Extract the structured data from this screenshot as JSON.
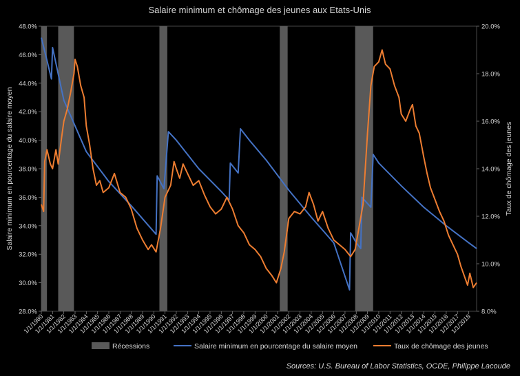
{
  "chart_data": {
    "type": "line",
    "title": "Salaire minimum et chômage des jeunes aux Etats-Unis",
    "ylabel_left": "Salaire minimum en pourcentage du salaire moyen",
    "ylabel_right": "Taux de chômage des jeunes",
    "source": "Sources: U.S. Bureau of Labor Statistics, OCDE, Philippe Lacoude",
    "x_range": [
      1980.0,
      2018.7
    ],
    "y_left_range": [
      28,
      48
    ],
    "y_right_range": [
      8,
      20
    ],
    "y_left_ticks": [
      "28.0%",
      "30.0%",
      "32.0%",
      "34.0%",
      "36.0%",
      "38.0%",
      "40.0%",
      "42.0%",
      "44.0%",
      "46.0%",
      "48.0%"
    ],
    "y_right_ticks": [
      "8.0%",
      "10.0%",
      "12.0%",
      "14.0%",
      "16.0%",
      "18.0%",
      "20.0%"
    ],
    "x_ticks": [
      {
        "label": "1/1/1980",
        "x": 1980
      },
      {
        "label": "1/1/1981",
        "x": 1981
      },
      {
        "label": "1/1/1982",
        "x": 1982
      },
      {
        "label": "1/1/1983",
        "x": 1983
      },
      {
        "label": "1/1/1984",
        "x": 1984
      },
      {
        "label": "1/1/1985",
        "x": 1985
      },
      {
        "label": "1/1/1986",
        "x": 1986
      },
      {
        "label": "1/1/1987",
        "x": 1987
      },
      {
        "label": "1/1/1988",
        "x": 1988
      },
      {
        "label": "1/1/1989",
        "x": 1989
      },
      {
        "label": "1/1/1990",
        "x": 1990
      },
      {
        "label": "1/1/1991",
        "x": 1991
      },
      {
        "label": "1/1/1992",
        "x": 1992
      },
      {
        "label": "1/1/1993",
        "x": 1993
      },
      {
        "label": "1/1/1994",
        "x": 1994
      },
      {
        "label": "1/1/1995",
        "x": 1995
      },
      {
        "label": "1/1/1996",
        "x": 1996
      },
      {
        "label": "1/1/1997",
        "x": 1997
      },
      {
        "label": "1/1/1998",
        "x": 1998
      },
      {
        "label": "1/1/1999",
        "x": 1999
      },
      {
        "label": "1/1/2000",
        "x": 2000
      },
      {
        "label": "1/1/2001",
        "x": 2001
      },
      {
        "label": "1/1/2002",
        "x": 2002
      },
      {
        "label": "1/1/2003",
        "x": 2003
      },
      {
        "label": "1/1/2004",
        "x": 2004
      },
      {
        "label": "1/1/2005",
        "x": 2005
      },
      {
        "label": "1/1/2006",
        "x": 2006
      },
      {
        "label": "1/1/2007",
        "x": 2007
      },
      {
        "label": "1/1/2008",
        "x": 2008
      },
      {
        "label": "1/1/2009",
        "x": 2009
      },
      {
        "label": "1/1/2010",
        "x": 2010
      },
      {
        "label": "1/1/2011",
        "x": 2011
      },
      {
        "label": "1/1/2012",
        "x": 2012
      },
      {
        "label": "1/1/2013",
        "x": 2013
      },
      {
        "label": "1/1/2014",
        "x": 2014
      },
      {
        "label": "1/1/2015",
        "x": 2015
      },
      {
        "label": "1/1/2016",
        "x": 2016
      },
      {
        "label": "1/1/2017",
        "x": 2017
      },
      {
        "label": "1/1/2018",
        "x": 2018
      }
    ],
    "recessions": {
      "name": "Récessions",
      "color": "#595959",
      "periods": [
        [
          1980.0,
          1980.5
        ],
        [
          1981.5,
          1982.9
        ],
        [
          1990.5,
          1991.2
        ],
        [
          2001.2,
          2001.9
        ],
        [
          2007.9,
          2009.5
        ]
      ]
    },
    "series": [
      {
        "name": "Salaire minimum en pourcentage du salaire moyen",
        "axis": "left",
        "color": "#4472c4",
        "points": [
          [
            1980.0,
            47.2
          ],
          [
            1980.5,
            45.6
          ],
          [
            1980.9,
            44.3
          ],
          [
            1981.0,
            46.5
          ],
          [
            1982.0,
            42.8
          ],
          [
            1984.0,
            39.2
          ],
          [
            1986.0,
            37.1
          ],
          [
            1988.0,
            35.4
          ],
          [
            1990.2,
            33.4
          ],
          [
            1990.3,
            37.5
          ],
          [
            1990.9,
            36.6
          ],
          [
            1991.3,
            40.6
          ],
          [
            1992.0,
            40.0
          ],
          [
            1994.0,
            38.0
          ],
          [
            1996.0,
            36.4
          ],
          [
            1996.7,
            35.8
          ],
          [
            1996.8,
            38.4
          ],
          [
            1997.5,
            37.7
          ],
          [
            1997.7,
            40.8
          ],
          [
            1998.5,
            40.0
          ],
          [
            2000.0,
            38.6
          ],
          [
            2002.0,
            36.5
          ],
          [
            2004.0,
            34.6
          ],
          [
            2006.0,
            32.8
          ],
          [
            2007.4,
            29.5
          ],
          [
            2007.5,
            33.5
          ],
          [
            2008.0,
            32.8
          ],
          [
            2008.4,
            32.4
          ],
          [
            2008.5,
            36.0
          ],
          [
            2009.3,
            35.3
          ],
          [
            2009.5,
            39.0
          ],
          [
            2010.0,
            38.4
          ],
          [
            2012.0,
            36.8
          ],
          [
            2014.0,
            35.3
          ],
          [
            2016.0,
            34.0
          ],
          [
            2018.0,
            32.8
          ],
          [
            2018.7,
            32.4
          ]
        ]
      },
      {
        "name": "Taux de chômage des jeunes",
        "axis": "right",
        "color": "#ed7d31",
        "points": [
          [
            1980.0,
            12.5
          ],
          [
            1980.2,
            12.2
          ],
          [
            1980.3,
            14.3
          ],
          [
            1980.5,
            14.8
          ],
          [
            1980.8,
            14.2
          ],
          [
            1981.0,
            14.0
          ],
          [
            1981.3,
            14.8
          ],
          [
            1981.5,
            14.2
          ],
          [
            1981.8,
            15.3
          ],
          [
            1982.0,
            16.0
          ],
          [
            1982.3,
            16.5
          ],
          [
            1982.6,
            17.2
          ],
          [
            1982.9,
            18.0
          ],
          [
            1983.0,
            18.6
          ],
          [
            1983.2,
            18.3
          ],
          [
            1983.5,
            17.5
          ],
          [
            1983.8,
            17.0
          ],
          [
            1984.0,
            15.8
          ],
          [
            1984.3,
            15.0
          ],
          [
            1984.6,
            14.0
          ],
          [
            1984.9,
            13.3
          ],
          [
            1985.2,
            13.5
          ],
          [
            1985.5,
            13.0
          ],
          [
            1986.0,
            13.2
          ],
          [
            1986.5,
            13.8
          ],
          [
            1987.0,
            13.0
          ],
          [
            1987.5,
            12.8
          ],
          [
            1988.0,
            12.3
          ],
          [
            1988.5,
            11.5
          ],
          [
            1989.0,
            11.0
          ],
          [
            1989.5,
            10.6
          ],
          [
            1989.8,
            10.8
          ],
          [
            1990.2,
            10.5
          ],
          [
            1990.6,
            11.5
          ],
          [
            1991.0,
            12.8
          ],
          [
            1991.5,
            13.3
          ],
          [
            1991.8,
            14.3
          ],
          [
            1992.0,
            14.0
          ],
          [
            1992.3,
            13.6
          ],
          [
            1992.6,
            14.2
          ],
          [
            1993.0,
            13.8
          ],
          [
            1993.5,
            13.3
          ],
          [
            1994.0,
            13.5
          ],
          [
            1994.5,
            12.9
          ],
          [
            1995.0,
            12.4
          ],
          [
            1995.5,
            12.1
          ],
          [
            1996.0,
            12.3
          ],
          [
            1996.5,
            12.8
          ],
          [
            1997.0,
            12.3
          ],
          [
            1997.5,
            11.6
          ],
          [
            1998.0,
            11.3
          ],
          [
            1998.5,
            10.8
          ],
          [
            1999.0,
            10.6
          ],
          [
            1999.5,
            10.3
          ],
          [
            2000.0,
            9.8
          ],
          [
            2000.5,
            9.5
          ],
          [
            2000.9,
            9.2
          ],
          [
            2001.3,
            9.8
          ],
          [
            2001.6,
            10.5
          ],
          [
            2002.0,
            11.9
          ],
          [
            2002.5,
            12.2
          ],
          [
            2003.0,
            12.1
          ],
          [
            2003.5,
            12.4
          ],
          [
            2003.8,
            13.0
          ],
          [
            2004.2,
            12.5
          ],
          [
            2004.6,
            11.8
          ],
          [
            2005.0,
            12.2
          ],
          [
            2005.5,
            11.5
          ],
          [
            2006.0,
            11.0
          ],
          [
            2006.5,
            10.8
          ],
          [
            2007.0,
            10.6
          ],
          [
            2007.5,
            10.3
          ],
          [
            2007.9,
            10.6
          ],
          [
            2008.2,
            11.4
          ],
          [
            2008.6,
            12.5
          ],
          [
            2009.0,
            15.5
          ],
          [
            2009.3,
            17.5
          ],
          [
            2009.6,
            18.3
          ],
          [
            2010.0,
            18.5
          ],
          [
            2010.3,
            19.0
          ],
          [
            2010.6,
            18.4
          ],
          [
            2011.0,
            18.2
          ],
          [
            2011.4,
            17.5
          ],
          [
            2011.8,
            17.0
          ],
          [
            2012.0,
            16.3
          ],
          [
            2012.4,
            16.0
          ],
          [
            2012.8,
            16.5
          ],
          [
            2013.0,
            16.7
          ],
          [
            2013.3,
            15.8
          ],
          [
            2013.6,
            15.5
          ],
          [
            2014.0,
            14.5
          ],
          [
            2014.3,
            13.8
          ],
          [
            2014.6,
            13.2
          ],
          [
            2015.0,
            12.7
          ],
          [
            2015.4,
            12.2
          ],
          [
            2015.8,
            11.8
          ],
          [
            2016.2,
            11.2
          ],
          [
            2016.6,
            10.8
          ],
          [
            2017.0,
            10.4
          ],
          [
            2017.3,
            9.9
          ],
          [
            2017.6,
            9.5
          ],
          [
            2017.9,
            9.1
          ],
          [
            2018.1,
            9.6
          ],
          [
            2018.4,
            9.0
          ],
          [
            2018.7,
            9.2
          ]
        ]
      }
    ],
    "legend_position": "bottom",
    "grid": false
  }
}
